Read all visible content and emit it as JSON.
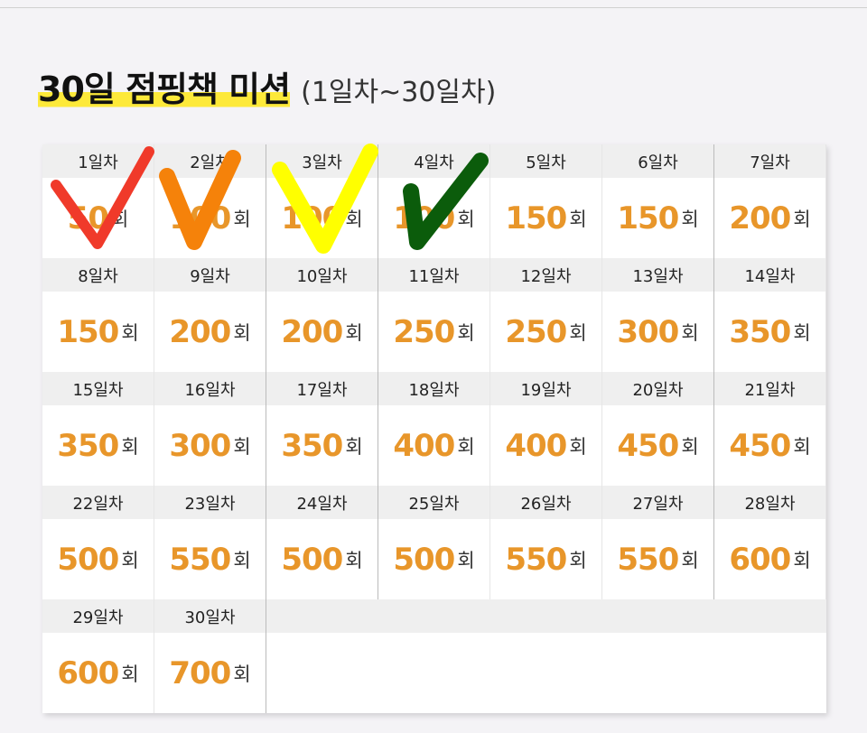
{
  "title": {
    "main": "30일 점핑책 미션",
    "sub": "(1일차~30일차)"
  },
  "unit": "회",
  "days": [
    {
      "label": "1일차",
      "count": "50",
      "checked": true,
      "check_color": "#f03a2a"
    },
    {
      "label": "2일차",
      "count": "100",
      "checked": true,
      "check_color": "#f5820a"
    },
    {
      "label": "3일차",
      "count": "100",
      "checked": true,
      "check_color": "#ffff00"
    },
    {
      "label": "4일차",
      "count": "100",
      "checked": true,
      "check_color": "#0b5c0b"
    },
    {
      "label": "5일차",
      "count": "150"
    },
    {
      "label": "6일차",
      "count": "150"
    },
    {
      "label": "7일차",
      "count": "200"
    },
    {
      "label": "8일차",
      "count": "150"
    },
    {
      "label": "9일차",
      "count": "200"
    },
    {
      "label": "10일차",
      "count": "200"
    },
    {
      "label": "11일차",
      "count": "250"
    },
    {
      "label": "12일차",
      "count": "250"
    },
    {
      "label": "13일차",
      "count": "300"
    },
    {
      "label": "14일차",
      "count": "350"
    },
    {
      "label": "15일차",
      "count": "350"
    },
    {
      "label": "16일차",
      "count": "300"
    },
    {
      "label": "17일차",
      "count": "350"
    },
    {
      "label": "18일차",
      "count": "400"
    },
    {
      "label": "19일차",
      "count": "400"
    },
    {
      "label": "20일차",
      "count": "450"
    },
    {
      "label": "21일차",
      "count": "450"
    },
    {
      "label": "22일차",
      "count": "500"
    },
    {
      "label": "23일차",
      "count": "550"
    },
    {
      "label": "24일차",
      "count": "500"
    },
    {
      "label": "25일차",
      "count": "500"
    },
    {
      "label": "26일차",
      "count": "550"
    },
    {
      "label": "27일차",
      "count": "550"
    },
    {
      "label": "28일차",
      "count": "600"
    },
    {
      "label": "29일차",
      "count": "600"
    },
    {
      "label": "30일차",
      "count": "700"
    }
  ],
  "colors": {
    "accent": "#e8962a",
    "highlight": "#fde93a"
  }
}
